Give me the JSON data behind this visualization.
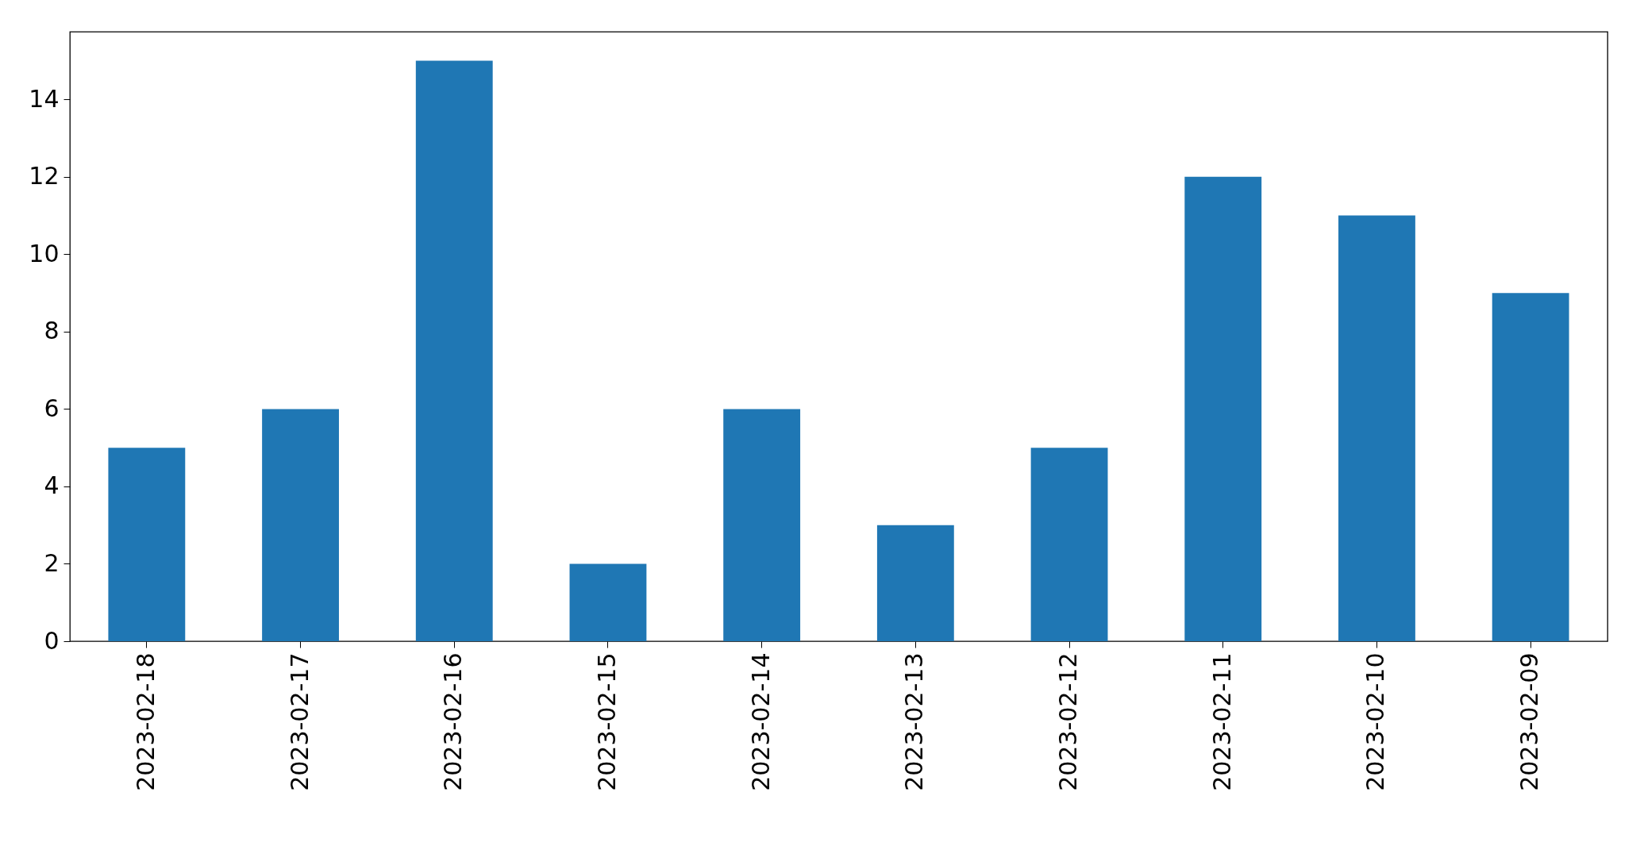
{
  "chart_data": {
    "type": "bar",
    "categories": [
      "2023-02-18",
      "2023-02-17",
      "2023-02-16",
      "2023-02-15",
      "2023-02-14",
      "2023-02-13",
      "2023-02-12",
      "2023-02-11",
      "2023-02-10",
      "2023-02-09"
    ],
    "values": [
      5,
      6,
      15,
      2,
      6,
      3,
      5,
      12,
      11,
      9
    ],
    "color": "#1f77b4",
    "ylim": [
      0,
      15.75
    ],
    "yticks": [
      0,
      2,
      4,
      6,
      8,
      10,
      12,
      14
    ],
    "grid": false
  }
}
